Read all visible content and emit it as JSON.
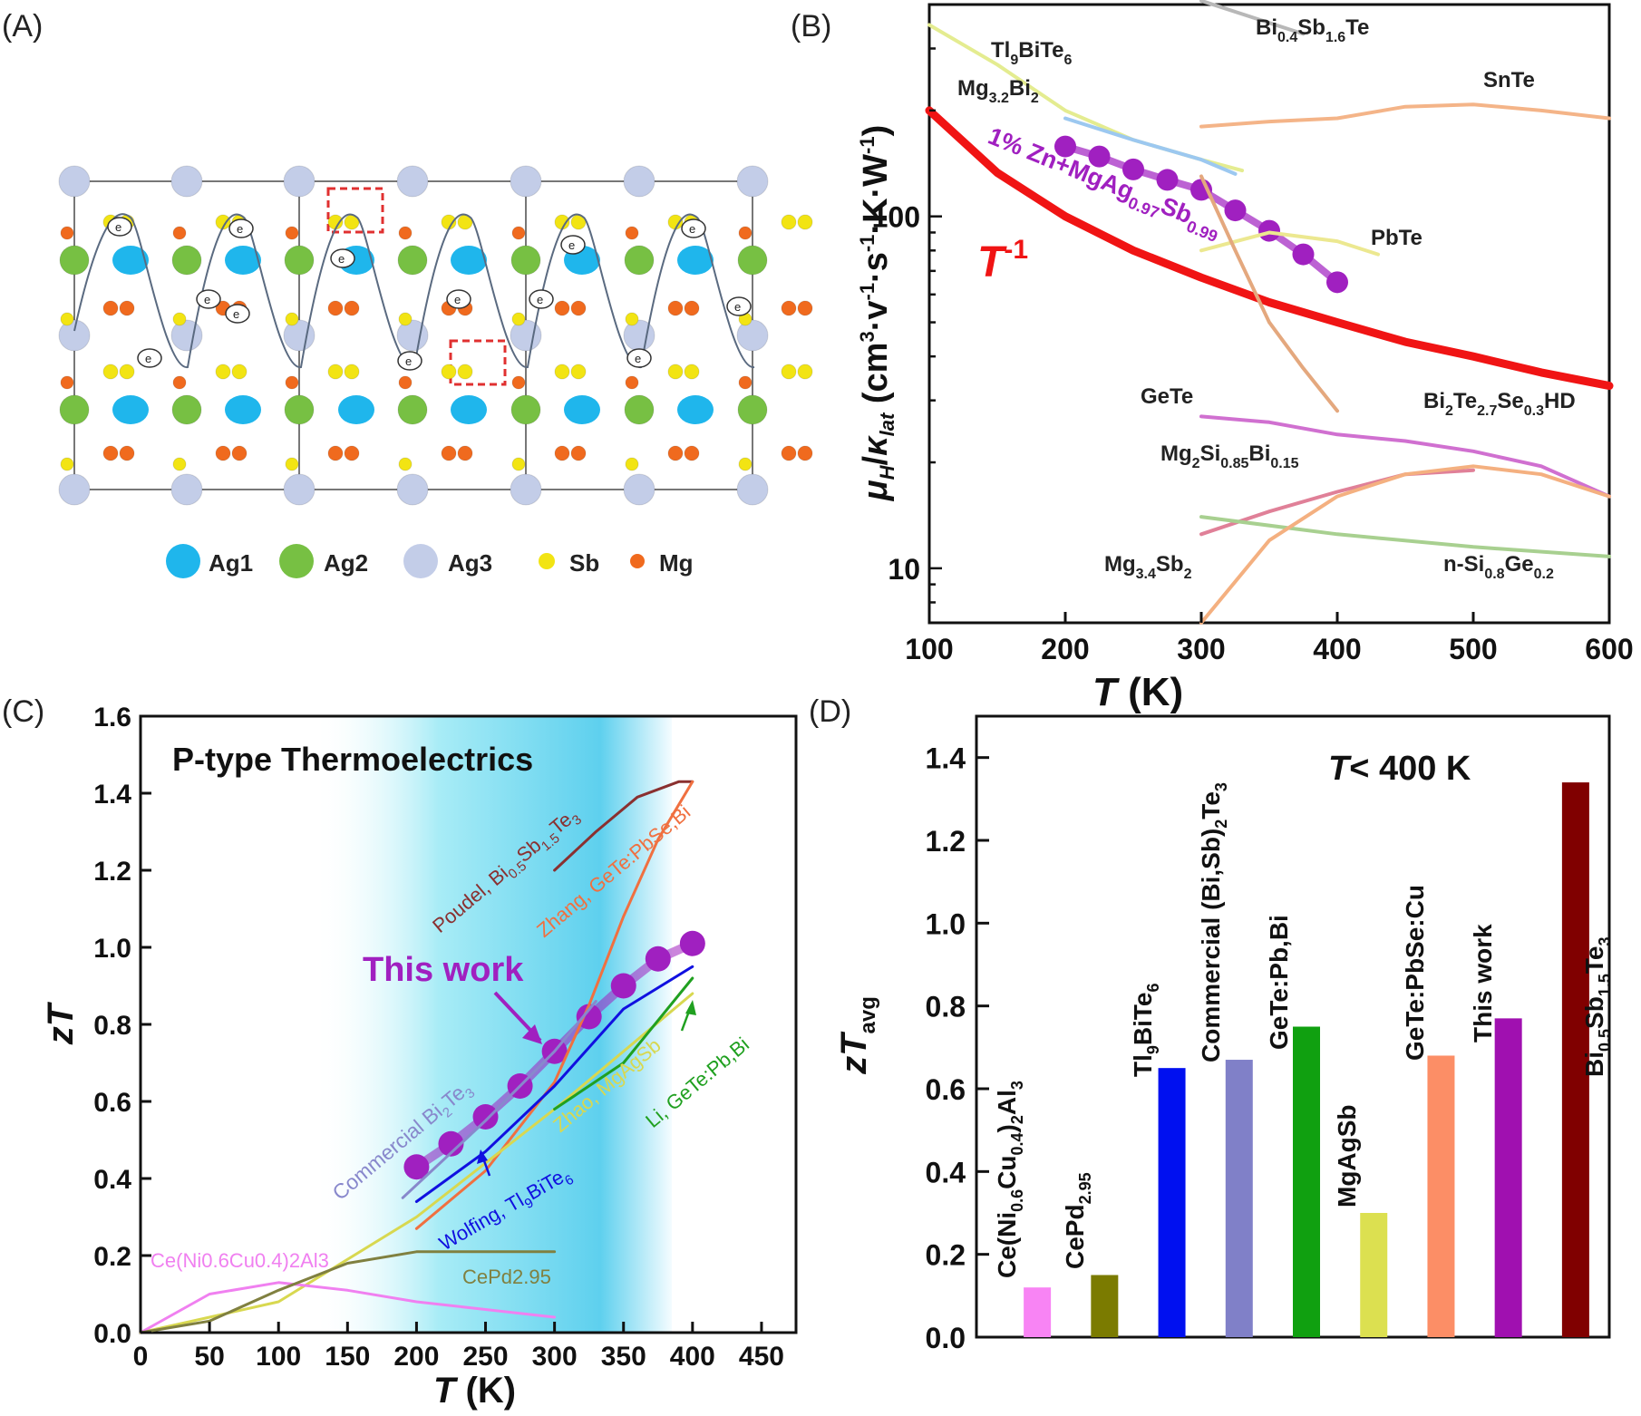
{
  "panels": {
    "a": {
      "label": "(A)",
      "legend": [
        {
          "label": "Ag1",
          "color": "#1fb6ec"
        },
        {
          "label": "Ag2",
          "color": "#77c043"
        },
        {
          "label": "Ag3",
          "color": "#c3cde8"
        },
        {
          "label": "Sb",
          "color": "#f2e413"
        },
        {
          "label": "Mg",
          "color": "#f06a1e"
        }
      ],
      "electron_label": "e"
    },
    "b": {
      "label": "(B)"
    },
    "c": {
      "label": "(C)"
    },
    "d": {
      "label": "(D)"
    }
  },
  "chart_data": [
    {
      "panel": "B",
      "type": "line",
      "xlabel": "T (K)",
      "ylabel": "μH/κlat (cm3·v-1·s-1·K·W-1)",
      "xlim": [
        100,
        600
      ],
      "ylim": [
        7,
        400
      ],
      "yscale": "log",
      "xticks": [
        100,
        200,
        300,
        400,
        500,
        600
      ],
      "yticks": [
        10,
        100
      ],
      "series": [
        {
          "name": "T-1",
          "color": "#f01414",
          "x": [
            100,
            150,
            200,
            250,
            300,
            350,
            400,
            450,
            500,
            550,
            600
          ],
          "y": [
            200,
            133,
            100,
            80,
            67,
            57,
            50,
            44,
            40,
            36,
            33
          ]
        },
        {
          "name": "1% Zn+MgAg0.97Sb0.99",
          "color": "#a020c0",
          "markers": true,
          "x": [
            200,
            225,
            250,
            275,
            300,
            325,
            350,
            375,
            400
          ],
          "y": [
            158,
            148,
            136,
            127,
            119,
            104,
            91,
            78,
            65
          ]
        },
        {
          "name": "Tl9BiTe6",
          "color": "#e4ec90",
          "x": [
            100,
            150,
            200,
            250,
            300,
            330
          ],
          "y": [
            350,
            270,
            200,
            165,
            145,
            135
          ]
        },
        {
          "name": "Bi0.4Sb1.6Te",
          "color": "#b8b8b8",
          "x": [
            300,
            375
          ],
          "y": [
            410,
            330
          ]
        },
        {
          "name": "Mg3.2Bi2",
          "color": "#9cc8f0",
          "x": [
            200,
            250,
            300,
            325
          ],
          "y": [
            190,
            165,
            145,
            132
          ]
        },
        {
          "name": "SnTe",
          "color": "#f4b488",
          "x": [
            300,
            350,
            400,
            450,
            500,
            550,
            600
          ],
          "y": [
            180,
            186,
            190,
            205,
            208,
            200,
            190
          ]
        },
        {
          "name": "PbTe",
          "color": "#ece890",
          "x": [
            300,
            350,
            400,
            430
          ],
          "y": [
            80,
            90,
            85,
            78
          ]
        },
        {
          "name": "GeTe",
          "color": "#d070d0",
          "x": [
            300,
            350,
            400,
            450,
            500,
            550,
            600
          ],
          "y": [
            27,
            26,
            24,
            23,
            21.5,
            19.5,
            16
          ]
        },
        {
          "name": "Bi2Te2.7Se0.3HD",
          "color": "#e4a87e",
          "x": [
            300,
            325,
            350,
            375,
            400
          ],
          "y": [
            130,
            80,
            50,
            37,
            28
          ]
        },
        {
          "name": "Mg2Si0.85Bi0.15",
          "color": "#e08098",
          "x": [
            300,
            350,
            400,
            450,
            500
          ],
          "y": [
            12.5,
            14.5,
            16.5,
            18.5,
            19
          ]
        },
        {
          "name": "n-Si0.8Ge0.2",
          "color": "#a8d090",
          "x": [
            300,
            400,
            500,
            600
          ],
          "y": [
            14,
            12.5,
            11.5,
            10.8
          ]
        },
        {
          "name": "Mg3.4Sb2",
          "color": "#f4b080",
          "x": [
            300,
            350,
            400,
            450,
            500,
            550,
            600
          ],
          "y": [
            7,
            12,
            16,
            18.5,
            19.5,
            18.5,
            16
          ]
        }
      ]
    },
    {
      "panel": "C",
      "type": "line",
      "title": "P-type Thermoelectrics",
      "xlabel": "T (K)",
      "ylabel": "zT",
      "xlim": [
        0,
        475
      ],
      "ylim": [
        0,
        1.6
      ],
      "xticks": [
        0,
        50,
        100,
        150,
        200,
        250,
        300,
        350,
        400,
        450
      ],
      "yticks": [
        0.0,
        0.2,
        0.4,
        0.6,
        0.8,
        1.0,
        1.2,
        1.4,
        1.6
      ],
      "shaded_region": [
        125,
        385
      ],
      "series": [
        {
          "name": "This work",
          "color": "#a020c0",
          "markers": true,
          "x": [
            200,
            225,
            250,
            275,
            300,
            325,
            350,
            375,
            400
          ],
          "y": [
            0.43,
            0.49,
            0.56,
            0.64,
            0.73,
            0.82,
            0.9,
            0.97,
            1.01
          ]
        },
        {
          "name": "Poudel, Bi0.5Sb1.5Te3",
          "color": "#8a3030",
          "x": [
            300,
            330,
            360,
            390,
            400
          ],
          "y": [
            1.2,
            1.3,
            1.39,
            1.43,
            1.43
          ]
        },
        {
          "name": "Zhang, GeTe:PbSe,Bi",
          "color": "#f07040",
          "x": [
            200,
            250,
            300,
            325,
            350,
            375,
            400
          ],
          "y": [
            0.27,
            0.42,
            0.65,
            0.85,
            1.08,
            1.28,
            1.43
          ]
        },
        {
          "name": "Commercial Bi2Te3",
          "color": "#8888cc",
          "x": [
            190,
            250,
            300,
            330
          ],
          "y": [
            0.35,
            0.55,
            0.73,
            0.86
          ]
        },
        {
          "name": "Wolfing, Tl9BiTe6",
          "color": "#1010e0",
          "x": [
            200,
            250,
            300,
            350,
            400
          ],
          "y": [
            0.34,
            0.47,
            0.64,
            0.84,
            0.95
          ]
        },
        {
          "name": "Zhao, MgAgSb",
          "color": "#d8d850",
          "x": [
            0,
            100,
            200,
            300,
            400
          ],
          "y": [
            0,
            0.08,
            0.3,
            0.58,
            0.88
          ]
        },
        {
          "name": "Li, GeTe:Pb,Bi",
          "color": "#20a020",
          "x": [
            300,
            350,
            400
          ],
          "y": [
            0.58,
            0.7,
            0.92
          ]
        },
        {
          "name": "Ce(Ni0.6Cu0.4)2Al3",
          "color": "#f080f0",
          "x": [
            0,
            50,
            100,
            150,
            200,
            250,
            300
          ],
          "y": [
            0,
            0.1,
            0.13,
            0.11,
            0.08,
            0.06,
            0.04
          ]
        },
        {
          "name": "CePd2.95",
          "color": "#808040",
          "x": [
            0,
            50,
            100,
            150,
            200,
            250,
            300
          ],
          "y": [
            0,
            0.03,
            0.11,
            0.18,
            0.21,
            0.21,
            0.21
          ]
        }
      ],
      "annotations": [
        "This work",
        "Poudel, Bi0.5Sb1.5Te3",
        "Zhang, GeTe:PbSe,Bi",
        "Commercial Bi2Te3",
        "Zhao, MgAgSb",
        "Li, GeTe:Pb,Bi",
        "Wolfing, Tl9BiTe6",
        "Ce(Ni0.6Cu0.4)2Al3",
        "CePd2.95"
      ]
    },
    {
      "panel": "D",
      "type": "bar",
      "title": "T< 400 K",
      "ylabel": "zTavg",
      "ylim": [
        0,
        1.5
      ],
      "yticks": [
        0.0,
        0.2,
        0.4,
        0.6,
        0.8,
        1.0,
        1.2,
        1.4
      ],
      "categories": [
        "Ce(Ni0.6Cu0.4)2Al3",
        "CePd2.95",
        "Tl9BiTe6",
        "Commercial (Bi,Sb)2Te3",
        "GeTe:Pb,Bi",
        "MgAgSb",
        "GeTe:PbSe:Cu",
        "This work",
        "Bi0.5Sb1.5Te3"
      ],
      "values": [
        0.12,
        0.15,
        0.65,
        0.67,
        0.75,
        0.3,
        0.68,
        0.77,
        1.34
      ],
      "colors": [
        "#f884f4",
        "#7b7b00",
        "#0010f0",
        "#8080c8",
        "#10a010",
        "#dce050",
        "#fc8e66",
        "#a010b0",
        "#800000"
      ]
    }
  ]
}
